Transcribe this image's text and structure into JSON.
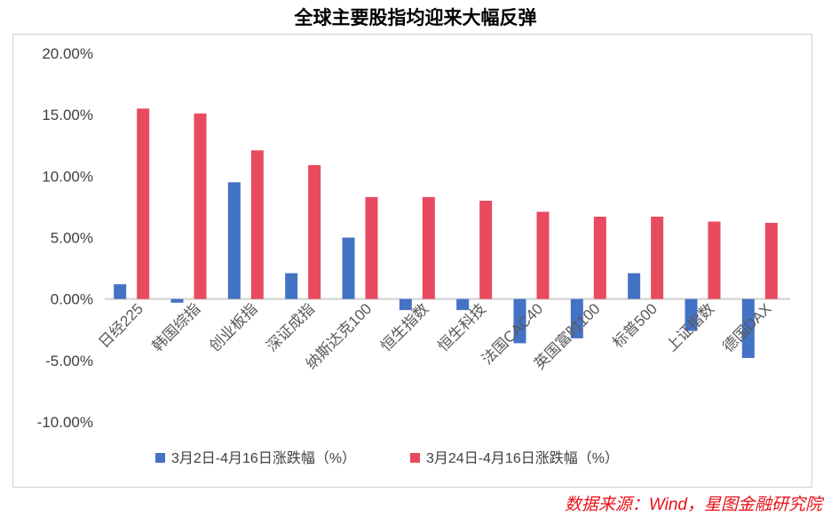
{
  "chart_data": {
    "type": "bar",
    "title": "全球主要股指均迎来大幅反弹",
    "categories": [
      "日经225",
      "韩国综指",
      "创业板指",
      "深证成指",
      "纳斯达克100",
      "恒生指数",
      "恒生科技",
      "法国CAC40",
      "英国富时100",
      "标普500",
      "上证指数",
      "德国DAX"
    ],
    "series": [
      {
        "name": "3月2日-4月16日涨跌幅（%）",
        "color": "#4472c4",
        "values": [
          1.2,
          -0.3,
          9.5,
          2.1,
          5.0,
          -0.9,
          -0.9,
          -3.6,
          -3.2,
          2.1,
          -2.6,
          -4.8
        ]
      },
      {
        "name": "3月24日-4月16日涨跌幅（%）",
        "color": "#e84a5f",
        "values": [
          15.5,
          15.1,
          12.1,
          10.9,
          8.3,
          8.3,
          8.0,
          7.1,
          6.7,
          6.7,
          6.3,
          6.2
        ]
      }
    ],
    "yticks": [
      "20.00%",
      "15.00%",
      "10.00%",
      "5.00%",
      "0.00%",
      "-5.00%",
      "-10.00%"
    ],
    "ylim": [
      -10,
      20
    ],
    "legend": "bottom",
    "source": "数据来源：Wind，星图金融研究院"
  }
}
